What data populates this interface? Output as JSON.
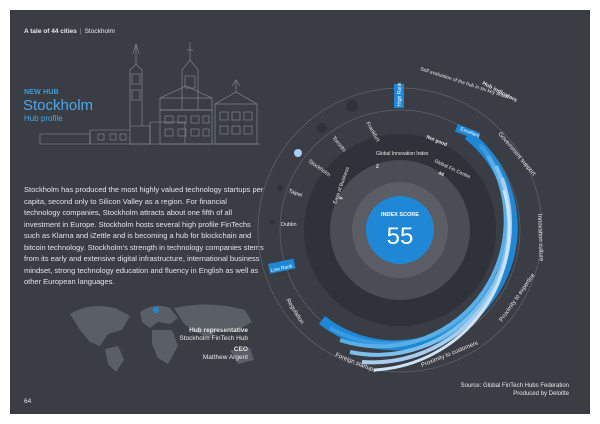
{
  "header": {
    "report": "A tale of 44 cities",
    "city": "Stockholm"
  },
  "badge": "NEW HUB",
  "title": "Stockholm",
  "subtitle": "Hub profile",
  "description": "Stockholm has produced the most highly valued technology startups per capita, second only to Silicon Valley as a region. For financial technology companies, Stockholm attracts about one fifth of all investment in Europe. Stockholm hosts several high profile FinTechs such as Klarna and iZettle and is becoming a hub for blockchain and bitcoin technology. Stockholm's strength in technology companies stems from its early and extensive digital infrastructure, international business mindset, strong technology education and fluency in English as well as other European languages.",
  "representative": {
    "title": "Hub representative",
    "org": "Stockholm FinTech Hub",
    "role": "CEO",
    "name": "Matthew Argent"
  },
  "index": {
    "label": "INDEX SCORE",
    "value": "55"
  },
  "inner_labels": {
    "high": "High Rank",
    "low": "Low Rank",
    "gfii_title": "Global Innovation Index",
    "gfii_value": "2",
    "gfci_title": "Global Fin Centre",
    "gfci_value": "44",
    "ease_title": "Ease of Business",
    "ease_value": "9"
  },
  "cities": [
    "Frankfurt",
    "Toronto",
    "Stockholm",
    "Taipei",
    "Dublin"
  ],
  "dimensions": [
    "Excellent",
    "Government support",
    "Innovation culture",
    "Proximity to expertise",
    "Proximity to customers",
    "Foreign startups",
    "Regulation"
  ],
  "outer_note": "Self evaluation of the hub in six key areas",
  "hub_indicators": "Hub indicators",
  "nb_good": "Not good",
  "source": {
    "line1": "Source: Global FinTech Hubs Federation",
    "line2": "Produced by Deloitte"
  },
  "page_number": "64",
  "colors": {
    "accent": "#1e88d6",
    "background": "#3a3d44",
    "light_blue": "#a9cdf0"
  }
}
